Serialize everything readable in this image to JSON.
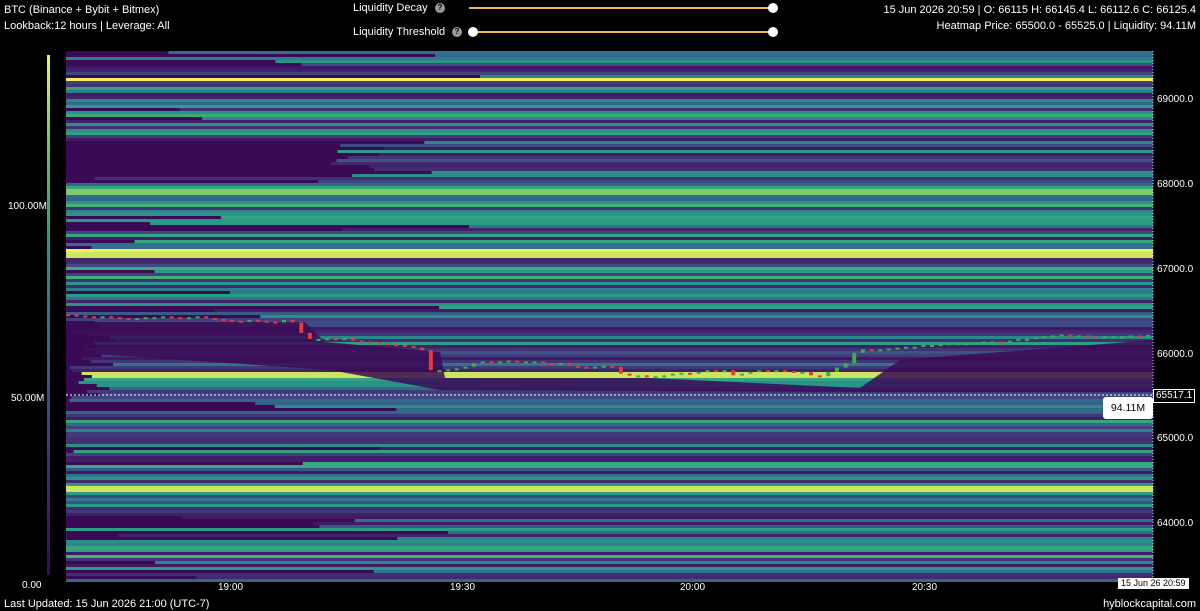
{
  "header": {
    "symbol": "BTC (Binance + Bybit + Bitmex)",
    "settings": "Lookback:12 hours | Leverage: All",
    "ohlc": "15 Jun 2026 20:59 | O: 66115 H: 66145.4 L: 66112.6 C: 66125.4",
    "heatmap_info": "Heatmap Price: 65500.0 - 65525.0 | Liquidity: 94.11M"
  },
  "controls": {
    "decay_label": "Liquidity Decay",
    "decay_value": 1.0,
    "threshold_label": "Liquidity Threshold",
    "threshold_range": [
      0.0,
      1.0
    ],
    "help_icon": "?"
  },
  "colorbar": {
    "ticks": [
      "100.00M",
      "50.00M",
      "0.00"
    ]
  },
  "price_axis": {
    "ticks": [
      "69000.0",
      "68000.0",
      "67000.0",
      "66000.0",
      "65000.0",
      "64000.0"
    ]
  },
  "time_axis": {
    "ticks": [
      "19:00",
      "19:30",
      "20:00",
      "20:30"
    ],
    "current": "15 Jun 26 20:59"
  },
  "crosshair": {
    "price": "65517.1",
    "liquidity": "94.11M"
  },
  "footer": {
    "updated": "Last Updated: 15 Jun 2026 21:00 (UTC-7)",
    "brand": "hyblockcapital.com"
  },
  "colors": {
    "background": "#000000",
    "slider": "#f3b24b",
    "up_candle": "#3fae49",
    "down_candle": "#e23c3c",
    "heat_low": "#3b0a57",
    "heat_mid": "#2b8b8c",
    "heat_high": "#f2f05a"
  },
  "chart_data": {
    "type": "heatmap",
    "x_range": [
      "18:43",
      "20:59"
    ],
    "y_range": [
      63300,
      69400
    ],
    "colorbar_range": [
      0,
      130000000
    ],
    "price_series_close": [
      66360,
      66350,
      66340,
      66330,
      66340,
      66330,
      66320,
      66300,
      66320,
      66330,
      66330,
      66340,
      66330,
      66320,
      66330,
      66340,
      66320,
      66310,
      66300,
      66290,
      66280,
      66300,
      66290,
      66280,
      66270,
      66300,
      66270,
      66150,
      66080,
      66080,
      66090,
      66070,
      66090,
      66060,
      66050,
      66040,
      66030,
      66020,
      66010,
      66000,
      65980,
      65950,
      65720,
      65720,
      65730,
      65740,
      65760,
      65800,
      65820,
      65800,
      65820,
      65830,
      65810,
      65820,
      65820,
      65800,
      65790,
      65800,
      65770,
      65760,
      65750,
      65760,
      65770,
      65760,
      65680,
      65660,
      65660,
      65650,
      65650,
      65660,
      65680,
      65690,
      65680,
      65700,
      65720,
      65710,
      65720,
      65660,
      65680,
      65700,
      65720,
      65700,
      65720,
      65710,
      65690,
      65700,
      65660,
      65650,
      65700,
      65750,
      65800,
      65920,
      65960,
      65950,
      65960,
      65970,
      65980,
      65990,
      65990,
      66010,
      66010,
      66020,
      66030,
      66030,
      66030,
      66040,
      66050,
      66050,
      66040,
      66060,
      66080,
      66080,
      66100,
      66110,
      66120,
      66130,
      66120,
      66120,
      66110,
      66100,
      66110,
      66110,
      66110,
      66120,
      66110,
      66125
    ]
  }
}
